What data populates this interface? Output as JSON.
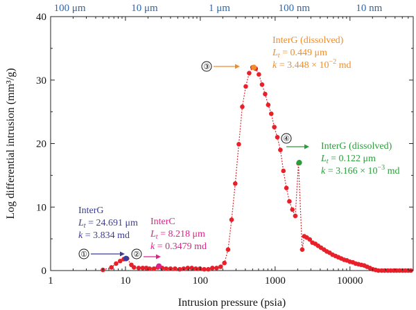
{
  "chart_data": {
    "type": "scatter",
    "xscale": "log",
    "xlim": [
      1,
      70000
    ],
    "ylim": [
      0,
      40
    ],
    "xlabel": "Intrusion pressure (psia)",
    "ylabel": "Log differential intrusion (mm³/g)",
    "x_ticks": [
      1,
      10,
      100,
      1000,
      10000
    ],
    "y_ticks": [
      0,
      10,
      20,
      30,
      40
    ],
    "top_axis": {
      "labels": [
        "100 μm",
        "10 μm",
        "1 μm",
        "100 nm",
        "10 nm"
      ],
      "at_pressure": [
        1.8,
        18,
        180,
        1800,
        18000
      ]
    },
    "series": [
      {
        "values": [
          [
            5,
            0.1
          ],
          [
            6.5,
            0.5
          ],
          [
            7.5,
            1.1
          ],
          [
            8.5,
            1.5
          ],
          [
            9.5,
            1.8
          ],
          [
            10.5,
            1.9
          ],
          [
            12,
            0.9
          ],
          [
            13,
            0.5
          ],
          [
            15,
            0.4
          ],
          [
            17,
            0.4
          ],
          [
            19,
            0.4
          ],
          [
            21,
            0.3
          ],
          [
            24,
            0.3
          ],
          [
            27,
            0.5
          ],
          [
            31,
            0.4
          ],
          [
            35,
            0.3
          ],
          [
            40,
            0.3
          ],
          [
            46,
            0.3
          ],
          [
            53,
            0.2
          ],
          [
            60,
            0.3
          ],
          [
            68,
            0.4
          ],
          [
            77,
            0.4
          ],
          [
            87,
            0.3
          ],
          [
            99,
            0.3
          ],
          [
            113,
            0.2
          ],
          [
            128,
            0.2
          ],
          [
            145,
            0.4
          ],
          [
            165,
            0.4
          ],
          [
            187,
            0.6
          ],
          [
            210,
            1.2
          ],
          [
            235,
            3.3
          ],
          [
            262,
            8.0
          ],
          [
            293,
            13.7
          ],
          [
            327,
            19.9
          ],
          [
            364,
            25.8
          ],
          [
            405,
            29.0
          ],
          [
            450,
            31.1
          ],
          [
            498,
            32.0
          ],
          [
            550,
            31.8
          ],
          [
            606,
            30.9
          ],
          [
            668,
            29.3
          ],
          [
            735,
            27.8
          ],
          [
            808,
            26.1
          ],
          [
            888,
            24.7
          ],
          [
            975,
            22.6
          ],
          [
            1070,
            21.0
          ],
          [
            1175,
            19.0
          ],
          [
            1290,
            15.7
          ],
          [
            1415,
            13.0
          ],
          [
            1550,
            10.9
          ],
          [
            1700,
            9.6
          ],
          [
            1860,
            8.6
          ],
          [
            2050,
            16.9
          ],
          [
            2300,
            3.3
          ],
          [
            2450,
            5.4
          ],
          [
            2650,
            5.2
          ],
          [
            2900,
            4.9
          ],
          [
            3150,
            4.4
          ],
          [
            3450,
            4.2
          ],
          [
            3750,
            3.9
          ],
          [
            4100,
            3.6
          ],
          [
            4500,
            3.3
          ],
          [
            4900,
            3.0
          ],
          [
            5350,
            2.8
          ],
          [
            5850,
            2.5
          ],
          [
            6400,
            2.3
          ],
          [
            7000,
            2.1
          ],
          [
            7650,
            1.9
          ],
          [
            8350,
            1.7
          ],
          [
            9100,
            1.6
          ],
          [
            9950,
            1.4
          ],
          [
            10900,
            1.3
          ],
          [
            11900,
            1.1
          ],
          [
            13000,
            1.0
          ],
          [
            14200,
            0.9
          ],
          [
            15500,
            0.8
          ],
          [
            16900,
            0.6
          ],
          [
            18500,
            0.4
          ],
          [
            20200,
            0.2
          ],
          [
            22000,
            0.1
          ],
          [
            24000,
            0.0
          ],
          [
            26500,
            0.0
          ],
          [
            29000,
            0.0
          ],
          [
            32000,
            0.0
          ],
          [
            35000,
            0.0
          ],
          [
            38500,
            0.0
          ],
          [
            42000,
            0.0
          ],
          [
            46000,
            0.0
          ],
          [
            50500,
            0.0
          ],
          [
            55000,
            0.0
          ],
          [
            60000,
            0.0
          ],
          [
            65000,
            0.0
          ]
        ],
        "color": "#e8202a"
      }
    ],
    "highlights": [
      {
        "id": 1,
        "x": 10.2,
        "y": 1.9,
        "color": "#3b3b98"
      },
      {
        "id": 2,
        "x": 28,
        "y": 0.7,
        "color": "#e0218a"
      },
      {
        "id": 3,
        "x": 520,
        "y": 32.0,
        "color": "#f28c28"
      },
      {
        "id": 4,
        "x": 2100,
        "y": 17.0,
        "color": "#2a9d3a"
      }
    ],
    "annotations": [
      {
        "marker": "①",
        "color": "#3b3b98",
        "lines": [
          {
            "name": "InterG"
          },
          {
            "sym": "L",
            "sub": "t",
            "text": " = 24.691 μm"
          },
          {
            "sym": "k",
            "text": " = 3.834 md"
          }
        ]
      },
      {
        "marker": "②",
        "color": "#e0218a",
        "lines": [
          {
            "name": "InterC"
          },
          {
            "sym": "L",
            "sub": "t",
            "text": " = 8.218 μm"
          },
          {
            "sym": "k",
            "text": " = 0.3479 md"
          }
        ]
      },
      {
        "marker": "③",
        "color": "#f28c28",
        "lines": [
          {
            "name": "InterG (dissolved)"
          },
          {
            "sym": "L",
            "sub": "t",
            "text": " = 0.449 μm"
          },
          {
            "sym": "k",
            "text": " = 3.448 × 10",
            "sup": "−2",
            "tail": " md"
          }
        ]
      },
      {
        "marker": "④",
        "color": "#2a9d3a",
        "lines": [
          {
            "name": "InterG (dissolved)"
          },
          {
            "sym": "L",
            "sub": "t",
            "text": " = 0.122 μm"
          },
          {
            "sym": "k",
            "text": " = 3.166 × 10",
            "sup": "−3",
            "tail": " md"
          }
        ]
      }
    ]
  }
}
